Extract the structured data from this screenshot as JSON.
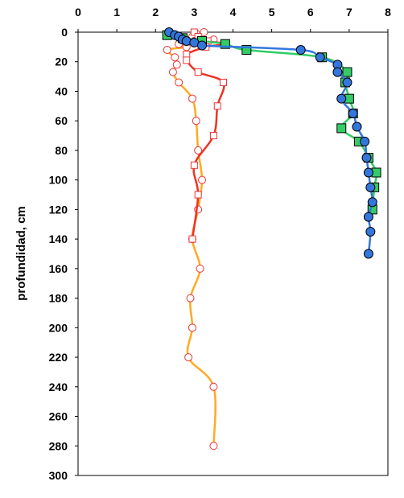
{
  "chart_data": {
    "type": "line",
    "title": "",
    "xlabel": "",
    "ylabel": "profundidad,  cm",
    "xlim": [
      0,
      8
    ],
    "ylim": [
      0,
      300
    ],
    "y_reversed": true,
    "x_axis_position": "top",
    "grid": false,
    "legend": "none",
    "x_ticks": [
      "0",
      "1",
      "2",
      "3",
      "4",
      "5",
      "6",
      "7",
      "8"
    ],
    "y_ticks": [
      "0",
      "20",
      "40",
      "60",
      "80",
      "100",
      "120",
      "140",
      "160",
      "180",
      "200",
      "220",
      "240",
      "260",
      "280",
      "300"
    ],
    "series": [
      {
        "color": "#ffaa22",
        "marker": "circle-open",
        "marker_color": "#ee3333",
        "points": [
          [
            3.25,
            0
          ],
          [
            3.05,
            1
          ],
          [
            2.95,
            3
          ],
          [
            3.5,
            5
          ],
          [
            3.0,
            6
          ],
          [
            2.6,
            8
          ],
          [
            2.8,
            10
          ],
          [
            2.3,
            12
          ],
          [
            2.5,
            17
          ],
          [
            2.55,
            22
          ],
          [
            2.45,
            27
          ],
          [
            2.6,
            34
          ],
          [
            2.95,
            45
          ],
          [
            3.05,
            60
          ],
          [
            3.1,
            80
          ],
          [
            3.2,
            100
          ],
          [
            3.1,
            120
          ],
          [
            2.95,
            140
          ],
          [
            3.15,
            160
          ],
          [
            2.9,
            180
          ],
          [
            2.95,
            200
          ],
          [
            2.85,
            220
          ],
          [
            3.5,
            240
          ],
          [
            3.5,
            280
          ]
        ]
      },
      {
        "color": "#ee3322",
        "marker": "square-open",
        "marker_color": "#ee3333",
        "points": [
          [
            3.0,
            0
          ],
          [
            3.1,
            3
          ],
          [
            3.35,
            6
          ],
          [
            3.8,
            8
          ],
          [
            3.3,
            10
          ],
          [
            2.8,
            15
          ],
          [
            2.8,
            19
          ],
          [
            3.1,
            27
          ],
          [
            3.75,
            34
          ],
          [
            3.6,
            50
          ],
          [
            3.5,
            70
          ],
          [
            3.0,
            90
          ],
          [
            3.1,
            110
          ],
          [
            2.95,
            140
          ]
        ]
      },
      {
        "color": "#33cc66",
        "marker": "square-filled",
        "marker_color": "#33cc66",
        "points": [
          [
            2.3,
            2
          ],
          [
            2.7,
            4
          ],
          [
            3.2,
            6
          ],
          [
            3.8,
            8
          ],
          [
            4.35,
            12
          ],
          [
            6.3,
            17
          ],
          [
            6.95,
            27
          ],
          [
            6.9,
            34
          ],
          [
            7.0,
            45
          ],
          [
            7.1,
            55
          ],
          [
            6.8,
            65
          ],
          [
            7.25,
            74
          ],
          [
            7.5,
            85
          ],
          [
            7.7,
            95
          ],
          [
            7.65,
            105
          ],
          [
            7.6,
            120
          ]
        ]
      },
      {
        "color": "#3377dd",
        "marker": "circle-filled",
        "marker_color": "#3377dd",
        "points": [
          [
            2.35,
            0
          ],
          [
            2.5,
            2
          ],
          [
            2.6,
            3
          ],
          [
            2.7,
            5
          ],
          [
            2.8,
            6
          ],
          [
            3.0,
            7
          ],
          [
            3.2,
            9
          ],
          [
            5.75,
            12
          ],
          [
            6.25,
            17
          ],
          [
            6.7,
            22
          ],
          [
            6.7,
            27
          ],
          [
            6.95,
            34
          ],
          [
            6.8,
            45
          ],
          [
            7.1,
            55
          ],
          [
            7.2,
            64
          ],
          [
            7.4,
            74
          ],
          [
            7.45,
            85
          ],
          [
            7.5,
            95
          ],
          [
            7.55,
            105
          ],
          [
            7.6,
            115
          ],
          [
            7.5,
            125
          ],
          [
            7.55,
            135
          ],
          [
            7.5,
            150
          ]
        ]
      }
    ]
  }
}
